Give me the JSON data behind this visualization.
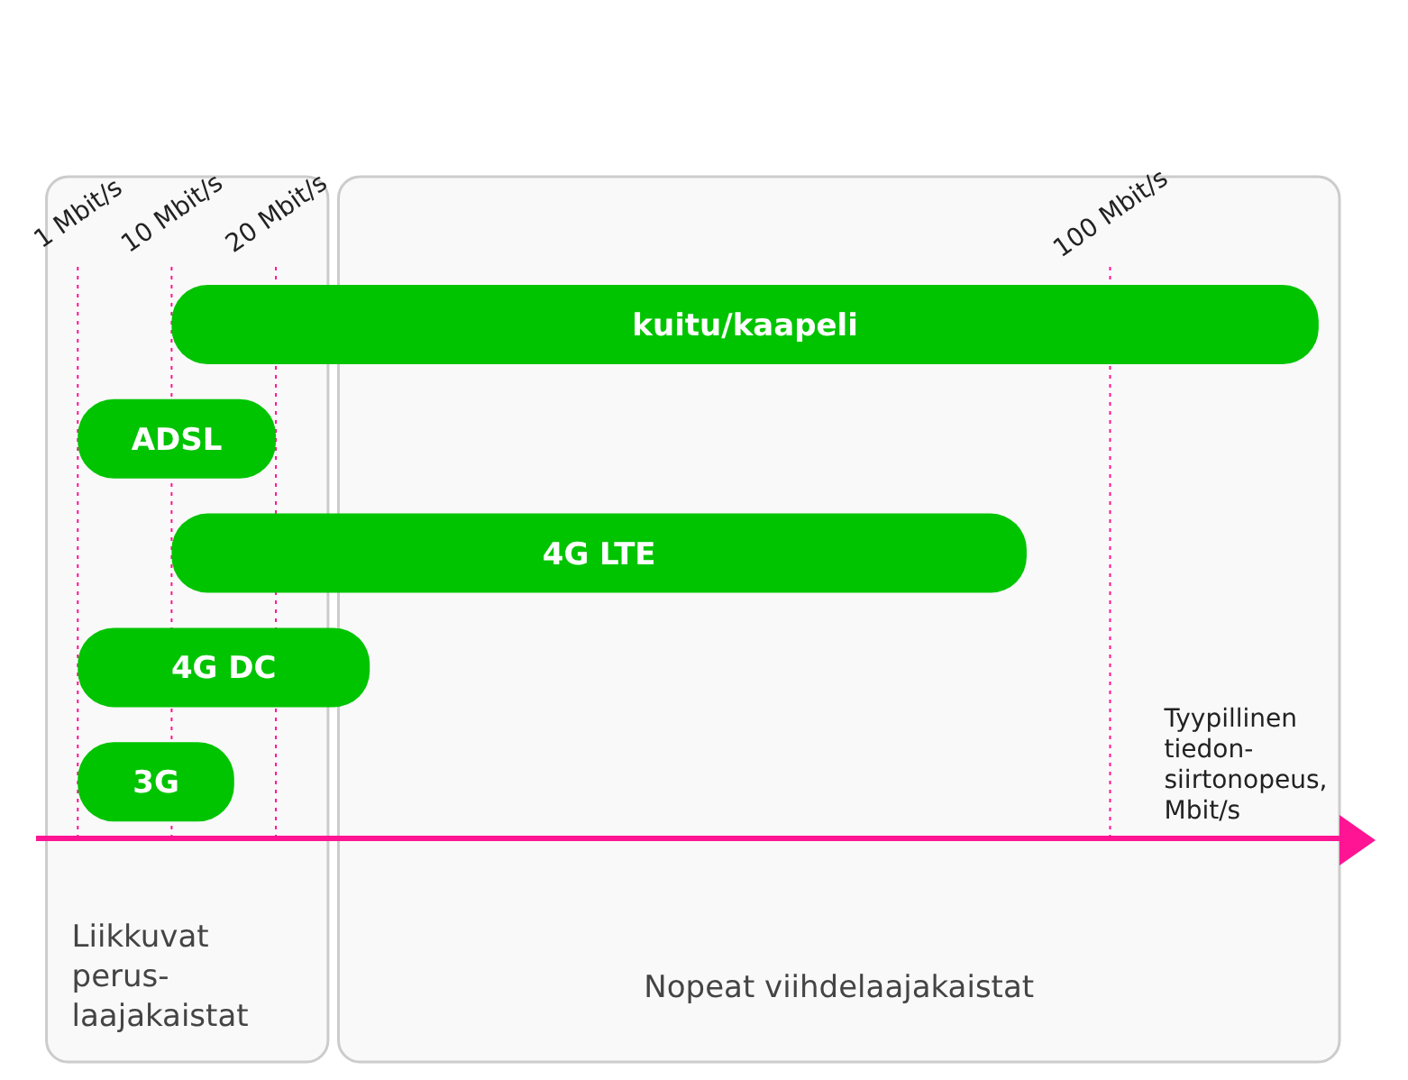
{
  "chart_data": {
    "type": "bar",
    "orientation": "horizontal",
    "xlabel": "Tyypillinen tiedon-siirtonopeus, Mbit/s",
    "categories": [
      "kuitu/kaapeli",
      "ADSL",
      "4G LTE",
      "4G DC",
      "3G"
    ],
    "base": [
      10,
      1,
      10,
      1,
      1
    ],
    "values": [
      110,
      19,
      82,
      28,
      15
    ],
    "color": "#00c400",
    "xlim": [
      -3,
      122
    ],
    "xticks": [
      {
        "value": 1,
        "label": "1 Mbit/s"
      },
      {
        "value": 10,
        "label": "10 Mbit/s"
      },
      {
        "value": 20,
        "label": "20 Mbit/s"
      },
      {
        "value": 100,
        "label": "100 Mbit/s"
      }
    ],
    "grid": "x",
    "line_style": "dotted",
    "bands": [
      {
        "axis": "x",
        "from": -2,
        "to": 25,
        "label": "Liikkuvat perus-laajakaistat",
        "color": "#cccccc"
      },
      {
        "axis": "x",
        "from": 26,
        "to": 122,
        "label": "Nopeat viihdelaajakaistat",
        "color": "#cccccc"
      }
    ]
  }
}
